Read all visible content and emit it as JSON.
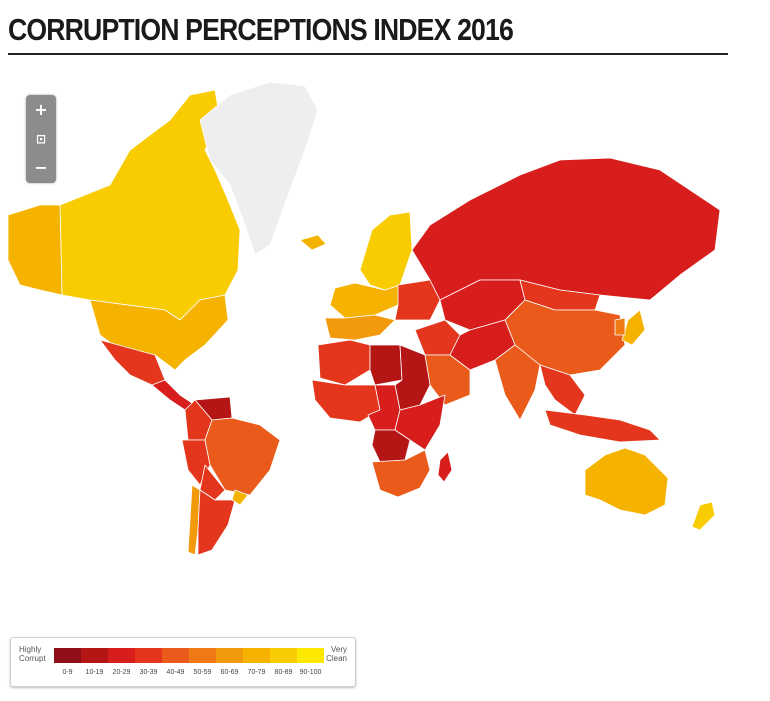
{
  "title": "CORRUPTION PERCEPTIONS INDEX 2016",
  "zoom_controls": {
    "zoom_in": "+",
    "zoom_fit": "⊡",
    "zoom_out": "−"
  },
  "legend": {
    "low_label_1": "Highly",
    "low_label_2": "Corrupt",
    "high_label_1": "Very",
    "high_label_2": "Clean",
    "bins": [
      {
        "label": "0-9",
        "color": "#8e1016"
      },
      {
        "label": "10-19",
        "color": "#b41515"
      },
      {
        "label": "20-29",
        "color": "#d71e1c"
      },
      {
        "label": "30-39",
        "color": "#e4361d"
      },
      {
        "label": "40-49",
        "color": "#ea5a1b"
      },
      {
        "label": "50-59",
        "color": "#ef7a14"
      },
      {
        "label": "60-69",
        "color": "#f39a0c"
      },
      {
        "label": "70-79",
        "color": "#f5b300"
      },
      {
        "label": "80-89",
        "color": "#f8cc00"
      },
      {
        "label": "90-100",
        "color": "#fce800"
      }
    ]
  },
  "no_data_color": "#eeeeee",
  "regions": [
    {
      "name": "Canada",
      "bin": "80-89"
    },
    {
      "name": "Alaska",
      "bin": "70-79"
    },
    {
      "name": "United States",
      "bin": "70-79"
    },
    {
      "name": "Greenland",
      "bin": "no data"
    },
    {
      "name": "Iceland",
      "bin": "70-79"
    },
    {
      "name": "Mexico",
      "bin": "30-39"
    },
    {
      "name": "Central America",
      "bin": "20-29"
    },
    {
      "name": "Venezuela",
      "bin": "10-19"
    },
    {
      "name": "Colombia",
      "bin": "30-39"
    },
    {
      "name": "Peru",
      "bin": "30-39"
    },
    {
      "name": "Brazil",
      "bin": "40-49"
    },
    {
      "name": "Bolivia",
      "bin": "30-39"
    },
    {
      "name": "Chile",
      "bin": "60-69"
    },
    {
      "name": "Argentina",
      "bin": "30-39"
    },
    {
      "name": "Uruguay",
      "bin": "70-79"
    },
    {
      "name": "Scandinavia",
      "bin": "80-89"
    },
    {
      "name": "Western Europe",
      "bin": "70-79"
    },
    {
      "name": "Southern Europe",
      "bin": "60-69"
    },
    {
      "name": "Eastern Europe",
      "bin": "30-39"
    },
    {
      "name": "Russia",
      "bin": "20-29"
    },
    {
      "name": "Kazakhstan & Central Asia",
      "bin": "20-29"
    },
    {
      "name": "Mongolia",
      "bin": "30-39"
    },
    {
      "name": "China",
      "bin": "40-49"
    },
    {
      "name": "Japan",
      "bin": "70-79"
    },
    {
      "name": "Korea",
      "bin": "50-59"
    },
    {
      "name": "Middle East",
      "bin": "30-39"
    },
    {
      "name": "Arabian Peninsula",
      "bin": "40-49"
    },
    {
      "name": "Iran & Afghanistan",
      "bin": "20-29"
    },
    {
      "name": "India",
      "bin": "40-49"
    },
    {
      "name": "Southeast Asia",
      "bin": "30-39"
    },
    {
      "name": "Indonesia",
      "bin": "30-39"
    },
    {
      "name": "North Africa",
      "bin": "30-39"
    },
    {
      "name": "Libya",
      "bin": "10-19"
    },
    {
      "name": "Sudan",
      "bin": "10-19"
    },
    {
      "name": "West Africa",
      "bin": "30-39"
    },
    {
      "name": "Central Africa",
      "bin": "20-29"
    },
    {
      "name": "DR Congo",
      "bin": "10-19"
    },
    {
      "name": "East Africa",
      "bin": "20-29"
    },
    {
      "name": "Southern Africa",
      "bin": "40-49"
    },
    {
      "name": "Madagascar",
      "bin": "20-29"
    },
    {
      "name": "Australia",
      "bin": "70-79"
    },
    {
      "name": "New Zealand",
      "bin": "80-89"
    }
  ]
}
